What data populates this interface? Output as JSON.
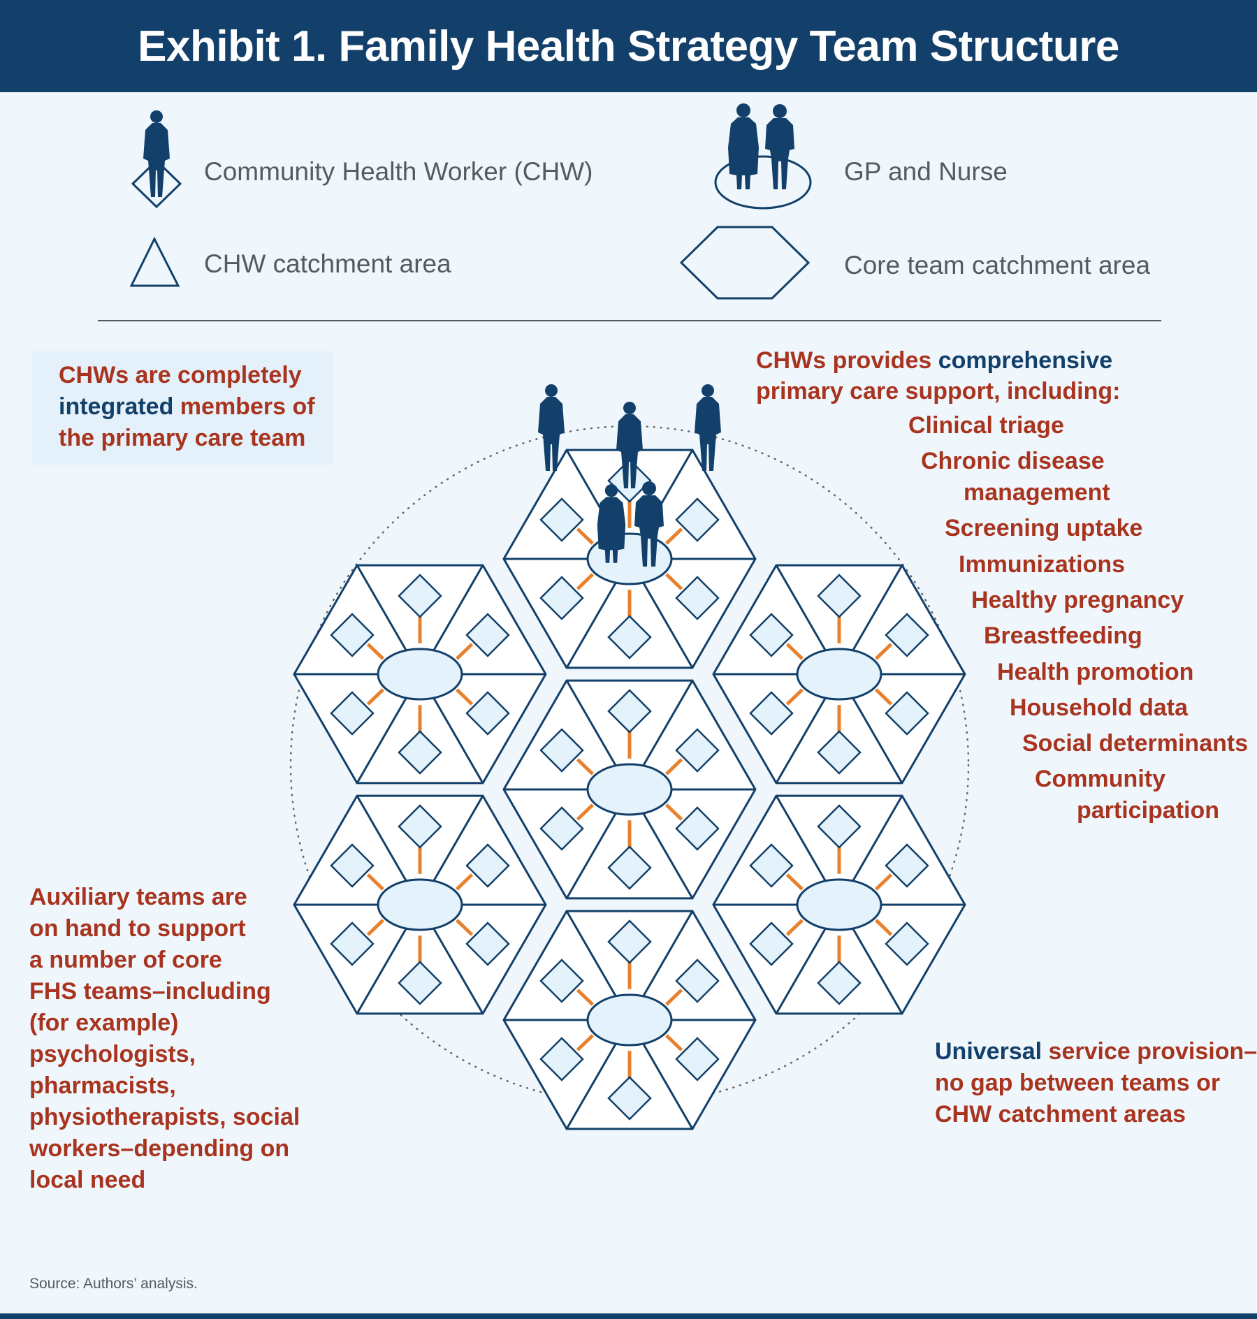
{
  "title": "Exhibit 1. Family Health Strategy Team Structure",
  "legend": {
    "chw": "Community Health Worker (CHW)",
    "gp_nurse": "GP and Nurse",
    "chw_area": "CHW catchment area",
    "core_area": "Core team catchment area"
  },
  "callout_integrated": {
    "line1": "CHWs are completely",
    "line2_hl": "integrated",
    "line2_rest": " members of",
    "line3": "the primary care team"
  },
  "callout_support": {
    "line1_a": "CHWs provides ",
    "line1_hl": "comprehensive",
    "line2": "primary care support, including:",
    "items": [
      "Clinical triage",
      "Chronic disease",
      "management",
      "Screening uptake",
      "Immunizations",
      "Healthy pregnancy",
      "Breastfeeding",
      "Health promotion",
      "Household data",
      "Social determinants",
      "Community",
      "participation"
    ]
  },
  "callout_auxiliary": {
    "lines": [
      "Auxiliary teams are",
      "on hand to support",
      "a number of core",
      "FHS teams–including",
      "(for example)",
      "psychologists,",
      "pharmacists,",
      "physiotherapists, social",
      "workers–depending on",
      "local need"
    ]
  },
  "callout_universal": {
    "line1_hl": "Universal",
    "line1_rest": " service provision–",
    "line2": "no gap between teams or",
    "line3": "CHW catchment areas"
  },
  "source": "Source: Authors’ analysis.",
  "colors": {
    "navy": "#12406a",
    "red": "#a8341f",
    "orange": "#e8812e",
    "light_blue": "#e4f2fb",
    "background": "#f0f7fc"
  }
}
